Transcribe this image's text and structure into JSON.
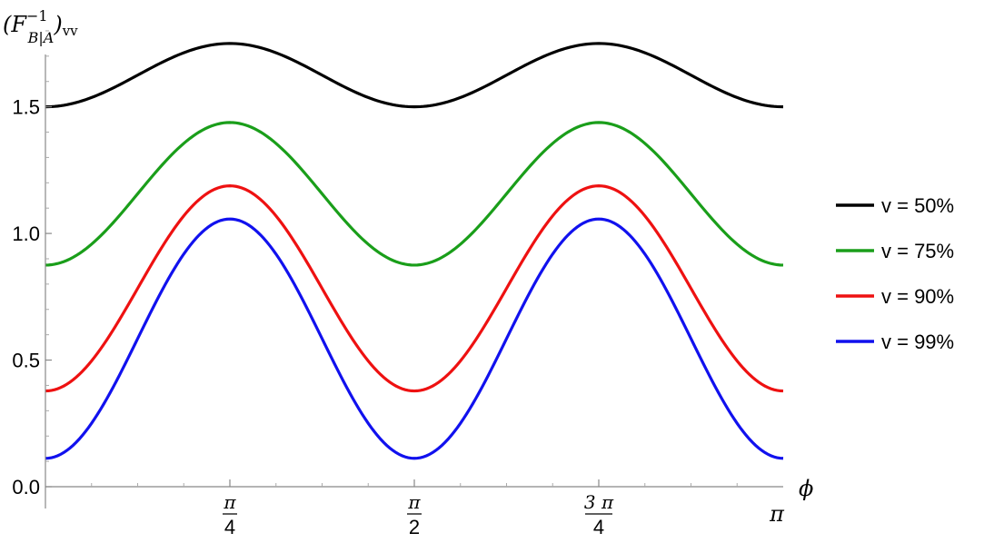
{
  "chart_data": {
    "type": "line",
    "x_domain": [
      0,
      3.14159265
    ],
    "ylim": [
      0,
      1.85
    ],
    "y_ticks": [
      {
        "value": 0.0,
        "label": "0.0"
      },
      {
        "value": 0.5,
        "label": "0.5"
      },
      {
        "value": 1.0,
        "label": "1.0"
      },
      {
        "value": 1.5,
        "label": "1.5"
      }
    ],
    "x_ticks": [
      {
        "value": 0.785398,
        "num": "π",
        "den": "4"
      },
      {
        "value": 1.570796,
        "num": "π",
        "den": "2"
      },
      {
        "value": 2.356194,
        "num": "3 π",
        "den": "4"
      },
      {
        "value": 3.141593,
        "label": "π"
      }
    ],
    "xlabel": "ϕ",
    "ylabel": {
      "open": "(F",
      "sup": "−1",
      "sub": "B|A",
      "close": ")",
      "tail": "vv"
    },
    "legend_position": "right",
    "series": [
      {
        "name": " v = 50%",
        "color": "#000000",
        "min": 1.5,
        "max": 1.75
      },
      {
        "name": "v = 75%",
        "color": "#1a9e1a",
        "min": 0.875,
        "max": 1.438
      },
      {
        "name": "v = 90%",
        "color": "#ee1111",
        "min": 0.378,
        "max": 1.188
      },
      {
        "name": "v = 99%",
        "color": "#1111ee",
        "min": 0.112,
        "max": 1.057
      }
    ]
  }
}
